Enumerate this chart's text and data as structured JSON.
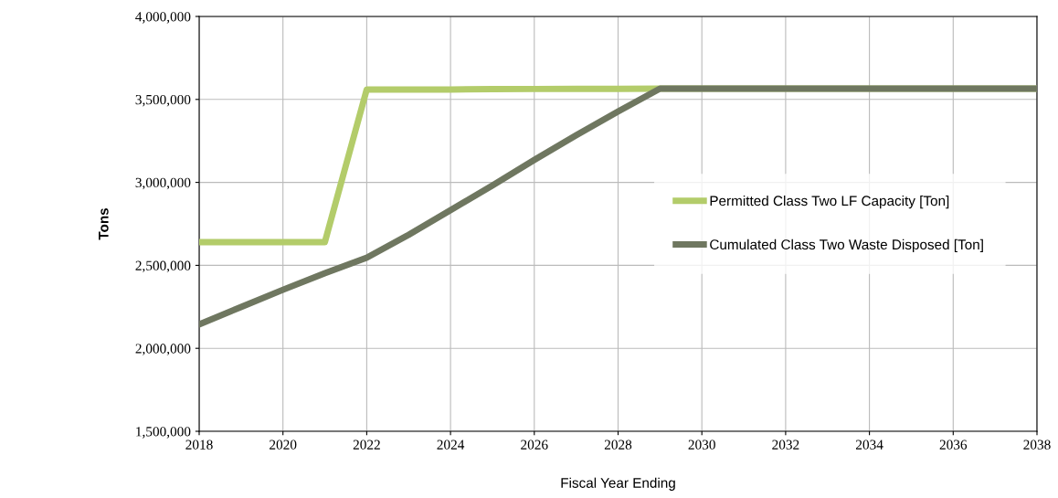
{
  "chart_data": {
    "type": "line",
    "xlabel": "Fiscal Year Ending",
    "ylabel": "Tons",
    "x": [
      2018,
      2019,
      2020,
      2021,
      2022,
      2023,
      2024,
      2025,
      2026,
      2027,
      2028,
      2029,
      2030,
      2031,
      2032,
      2033,
      2034,
      2035,
      2036,
      2037,
      2038
    ],
    "series": [
      {
        "name": "Permitted Class Two LF Capacity [Ton]",
        "color": "#b3cc6a",
        "values": [
          2640000,
          2640000,
          2640000,
          2640000,
          3560000,
          3560000,
          3560000,
          3562000,
          3563000,
          3564000,
          3564000,
          3565000,
          3565000,
          3565000,
          3565000,
          3565000,
          3565000,
          3565000,
          3565000,
          3565000,
          3565000
        ]
      },
      {
        "name": "Cumulated Class Two Waste Disposed [Ton]",
        "color": "#6f7760",
        "values": [
          2144000,
          2249000,
          2353000,
          2453000,
          2546000,
          2684000,
          2833000,
          2981000,
          3135000,
          3284000,
          3427000,
          3565000,
          3565000,
          3565000,
          3565000,
          3565000,
          3565000,
          3565000,
          3565000,
          3565000,
          3565000
        ]
      }
    ],
    "xlim": [
      2018,
      2038
    ],
    "xticks": [
      2018,
      2020,
      2022,
      2024,
      2026,
      2028,
      2030,
      2032,
      2034,
      2036,
      2038
    ],
    "ylim": [
      1500000,
      4000000
    ],
    "yticks": [
      {
        "value": 1500000,
        "label": "1,500,000"
      },
      {
        "value": 2000000,
        "label": "2,000,000"
      },
      {
        "value": 2500000,
        "label": "2,500,000"
      },
      {
        "value": 3000000,
        "label": "3,000,000"
      },
      {
        "value": 3500000,
        "label": "3,500,000"
      },
      {
        "value": 4000000,
        "label": "4,000,000"
      }
    ],
    "grid": true,
    "legend": "center right",
    "marker": "none",
    "line_style": "solid"
  }
}
